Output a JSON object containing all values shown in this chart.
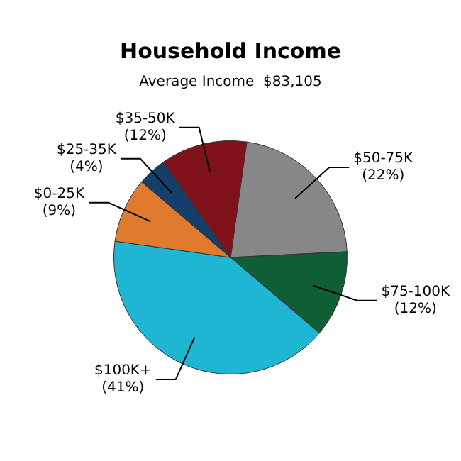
{
  "chart_data": {
    "type": "pie",
    "title": "Household Income",
    "subtitle": "Average Income  $83,105",
    "categories": [
      "$50-75K",
      "$75-100K",
      "$100K+",
      "$0-25K",
      "$25-35K",
      "$35-50K"
    ],
    "values": [
      22,
      12,
      41,
      9,
      4,
      12
    ],
    "value_labels": [
      "(22%)",
      "(12%)",
      "(41%)",
      "(9%)",
      "(4%)",
      "(12%)"
    ],
    "colors": [
      "#878787",
      "#0f5e35",
      "#1fb6d4",
      "#e07a2e",
      "#133f6a",
      "#7f1319"
    ],
    "legend": false
  }
}
